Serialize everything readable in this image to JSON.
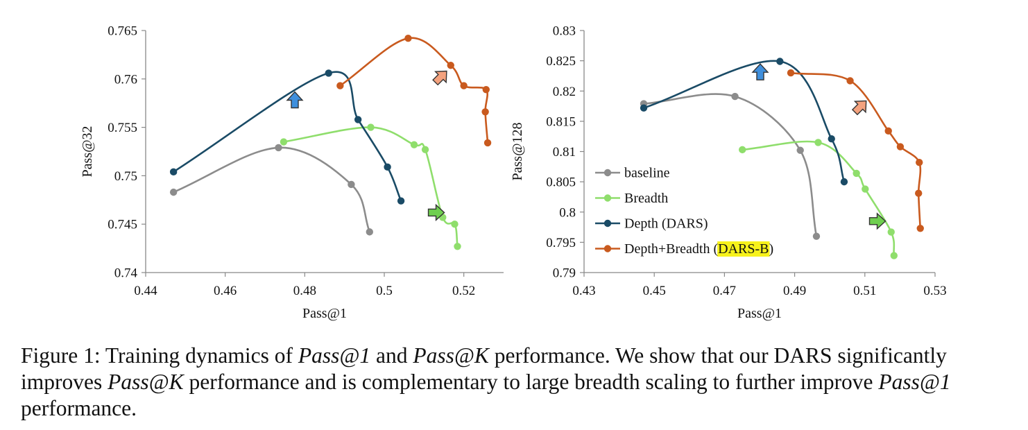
{
  "colors": {
    "baseline": "#8c8c8c",
    "breadth": "#8fde6c",
    "depth": "#1a4b66",
    "depth_breadth": "#c95a1e",
    "highlight": "#f7f21c",
    "arrow_blue": "#3f8fdc",
    "arrow_orange": "#f4a27e",
    "arrow_green": "#6fcf4f"
  },
  "chart_data": [
    {
      "type": "line",
      "xlabel": "Pass@1",
      "ylabel": "Pass@32",
      "xlim": [
        0.44,
        0.53
      ],
      "ylim": [
        0.74,
        0.765
      ],
      "xticks": [
        "0.44",
        "0.46",
        "0.48",
        "0.5",
        "0.52"
      ],
      "yticks": [
        "0.74",
        "0.745",
        "0.75",
        "0.755",
        "0.76",
        "0.765"
      ],
      "grid": false,
      "series": [
        {
          "key": "baseline",
          "x": [
            0.447,
            0.4734,
            0.4917,
            0.4963
          ],
          "y": [
            0.7483,
            0.7529,
            0.7491,
            0.7442
          ]
        },
        {
          "key": "breadth",
          "x": [
            0.4747,
            0.4966,
            0.5075,
            0.5103,
            0.5147,
            0.5177,
            0.5184
          ],
          "y": [
            0.7535,
            0.755,
            0.7532,
            0.7527,
            0.7457,
            0.745,
            0.7427
          ]
        },
        {
          "key": "depth",
          "x": [
            0.447,
            0.486,
            0.4934,
            0.5008,
            0.5042
          ],
          "y": [
            0.7504,
            0.7606,
            0.7558,
            0.7509,
            0.7474
          ]
        },
        {
          "key": "depth_breadth",
          "x": [
            0.4889,
            0.506,
            0.5167,
            0.52,
            0.5256,
            0.5254,
            0.526
          ],
          "y": [
            0.7593,
            0.7642,
            0.7614,
            0.7593,
            0.7589,
            0.7566,
            0.7534
          ]
        }
      ],
      "arrows": [
        {
          "color": "arrow_blue",
          "direction": "up",
          "x": 0.4775,
          "y": 0.7578
        },
        {
          "color": "arrow_orange",
          "direction": "up-right",
          "x": 0.5142,
          "y": 0.7602
        },
        {
          "color": "arrow_green",
          "direction": "right",
          "x": 0.513,
          "y": 0.7462
        }
      ]
    },
    {
      "type": "line",
      "xlabel": "Pass@1",
      "ylabel": "Pass@128",
      "xlim": [
        0.43,
        0.53
      ],
      "ylim": [
        0.79,
        0.83
      ],
      "xticks": [
        "0.43",
        "0.45",
        "0.47",
        "0.49",
        "0.51",
        "0.53"
      ],
      "yticks": [
        "0.79",
        "0.795",
        "0.8",
        "0.805",
        "0.81",
        "0.815",
        "0.82",
        "0.825",
        "0.83"
      ],
      "grid": false,
      "legend": {
        "position": "center-left",
        "entries": [
          {
            "key": "baseline",
            "label": "baseline"
          },
          {
            "key": "breadth",
            "label": "Breadth"
          },
          {
            "key": "depth",
            "label": "Depth (DARS)"
          },
          {
            "key": "depth_breadth",
            "label_before": "Depth+Breadth (",
            "label_highlight": "DARS-B",
            "label_after": ")"
          }
        ]
      },
      "series": [
        {
          "key": "baseline",
          "x": [
            0.447,
            0.473,
            0.4916,
            0.4962
          ],
          "y": [
            0.8179,
            0.8191,
            0.8102,
            0.796
          ]
        },
        {
          "key": "breadth",
          "x": [
            0.4751,
            0.4967,
            0.5076,
            0.5101,
            0.5175,
            0.5183
          ],
          "y": [
            0.8103,
            0.8115,
            0.8064,
            0.8038,
            0.7967,
            0.7928
          ]
        },
        {
          "key": "depth",
          "x": [
            0.447,
            0.4858,
            0.5005,
            0.5041
          ],
          "y": [
            0.8172,
            0.8249,
            0.8121,
            0.805
          ]
        },
        {
          "key": "depth_breadth",
          "x": [
            0.4889,
            0.5058,
            0.5167,
            0.5201,
            0.5255,
            0.5253,
            0.5258
          ],
          "y": [
            0.823,
            0.8217,
            0.8134,
            0.8108,
            0.8082,
            0.8031,
            0.7973
          ]
        }
      ],
      "arrows": [
        {
          "color": "arrow_blue",
          "direction": "up",
          "x": 0.4802,
          "y": 0.8231
        },
        {
          "color": "arrow_orange",
          "direction": "up-right",
          "x": 0.5087,
          "y": 0.8174
        },
        {
          "color": "arrow_green",
          "direction": "right",
          "x": 0.5135,
          "y": 0.7985
        }
      ]
    }
  ],
  "caption": {
    "parts": [
      {
        "text": "Figure 1: Training dynamics of ",
        "italic": false
      },
      {
        "text": "Pass@1",
        "italic": true
      },
      {
        "text": " and ",
        "italic": false
      },
      {
        "text": "Pass@K",
        "italic": true
      },
      {
        "text": " performance.  We show that our DARS significantly improves ",
        "italic": false
      },
      {
        "text": "Pass@K",
        "italic": true
      },
      {
        "text": " performance and is complementary to large breadth scaling to further improve ",
        "italic": false
      },
      {
        "text": "Pass@1",
        "italic": true
      },
      {
        "text": " performance.",
        "italic": false
      }
    ]
  }
}
